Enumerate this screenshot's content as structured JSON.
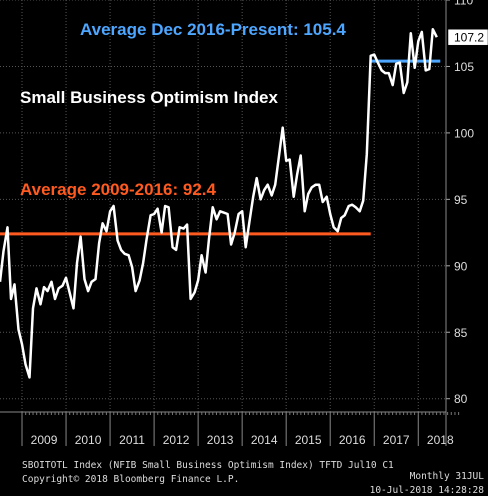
{
  "chart_data": {
    "type": "line",
    "title": "Small Business Optimism Index",
    "x_axis_labels": [
      "2009",
      "2010",
      "2011",
      "2012",
      "2013",
      "2014",
      "2015",
      "2016",
      "2017",
      "2018"
    ],
    "y_axis_labels": [
      "80",
      "85",
      "90",
      "95",
      "100",
      "105",
      "110"
    ],
    "ylim": [
      79,
      110
    ],
    "xlim": [
      2008.5,
      2018.63
    ],
    "grid": true,
    "series": [
      {
        "color": "#ffffff",
        "points": [
          [
            2008.5,
            88.8
          ],
          [
            2008.58,
            91.1
          ],
          [
            2008.67,
            92.9
          ],
          [
            2008.75,
            87.5
          ],
          [
            2008.83,
            88.6
          ],
          [
            2008.92,
            85.2
          ],
          [
            2009.0,
            84.1
          ],
          [
            2009.08,
            82.6
          ],
          [
            2009.17,
            81.6
          ],
          [
            2009.25,
            86.8
          ],
          [
            2009.33,
            88.3
          ],
          [
            2009.42,
            87.1
          ],
          [
            2009.5,
            88.4
          ],
          [
            2009.58,
            88.1
          ],
          [
            2009.67,
            88.8
          ],
          [
            2009.75,
            87.5
          ],
          [
            2009.83,
            88.3
          ],
          [
            2009.92,
            88.5
          ],
          [
            2010.0,
            89.1
          ],
          [
            2010.08,
            88.0
          ],
          [
            2010.17,
            86.8
          ],
          [
            2010.25,
            90.2
          ],
          [
            2010.33,
            92.2
          ],
          [
            2010.42,
            89.0
          ],
          [
            2010.5,
            88.1
          ],
          [
            2010.58,
            88.8
          ],
          [
            2010.67,
            89.0
          ],
          [
            2010.75,
            91.7
          ],
          [
            2010.83,
            93.2
          ],
          [
            2010.92,
            92.6
          ],
          [
            2011.0,
            94.1
          ],
          [
            2011.08,
            94.5
          ],
          [
            2011.17,
            91.9
          ],
          [
            2011.25,
            91.2
          ],
          [
            2011.33,
            90.9
          ],
          [
            2011.42,
            90.8
          ],
          [
            2011.5,
            89.9
          ],
          [
            2011.58,
            88.1
          ],
          [
            2011.67,
            88.9
          ],
          [
            2011.75,
            90.2
          ],
          [
            2011.83,
            92.0
          ],
          [
            2011.92,
            93.8
          ],
          [
            2012.0,
            93.9
          ],
          [
            2012.08,
            94.3
          ],
          [
            2012.17,
            92.5
          ],
          [
            2012.25,
            94.5
          ],
          [
            2012.33,
            94.4
          ],
          [
            2012.42,
            91.4
          ],
          [
            2012.5,
            91.2
          ],
          [
            2012.58,
            92.9
          ],
          [
            2012.67,
            92.8
          ],
          [
            2012.75,
            93.1
          ],
          [
            2012.83,
            87.5
          ],
          [
            2012.92,
            88.0
          ],
          [
            2013.0,
            88.9
          ],
          [
            2013.08,
            90.8
          ],
          [
            2013.17,
            89.5
          ],
          [
            2013.25,
            92.1
          ],
          [
            2013.33,
            94.4
          ],
          [
            2013.42,
            93.5
          ],
          [
            2013.5,
            94.1
          ],
          [
            2013.58,
            94.0
          ],
          [
            2013.67,
            93.9
          ],
          [
            2013.75,
            91.6
          ],
          [
            2013.83,
            92.5
          ],
          [
            2013.92,
            93.9
          ],
          [
            2014.0,
            94.1
          ],
          [
            2014.08,
            91.4
          ],
          [
            2014.17,
            93.4
          ],
          [
            2014.25,
            95.2
          ],
          [
            2014.33,
            96.6
          ],
          [
            2014.42,
            95.0
          ],
          [
            2014.5,
            95.7
          ],
          [
            2014.58,
            96.1
          ],
          [
            2014.67,
            95.3
          ],
          [
            2014.75,
            96.1
          ],
          [
            2014.83,
            98.1
          ],
          [
            2014.92,
            100.4
          ],
          [
            2015.0,
            97.9
          ],
          [
            2015.08,
            98.0
          ],
          [
            2015.17,
            95.2
          ],
          [
            2015.25,
            96.9
          ],
          [
            2015.33,
            98.3
          ],
          [
            2015.42,
            94.1
          ],
          [
            2015.5,
            95.4
          ],
          [
            2015.58,
            95.9
          ],
          [
            2015.67,
            96.1
          ],
          [
            2015.75,
            96.1
          ],
          [
            2015.83,
            94.8
          ],
          [
            2015.92,
            95.2
          ],
          [
            2016.0,
            93.9
          ],
          [
            2016.08,
            92.9
          ],
          [
            2016.17,
            92.6
          ],
          [
            2016.25,
            93.6
          ],
          [
            2016.33,
            93.8
          ],
          [
            2016.42,
            94.5
          ],
          [
            2016.5,
            94.6
          ],
          [
            2016.58,
            94.4
          ],
          [
            2016.67,
            94.1
          ],
          [
            2016.75,
            94.9
          ],
          [
            2016.83,
            98.4
          ],
          [
            2016.92,
            105.8
          ],
          [
            2017.0,
            105.9
          ],
          [
            2017.08,
            105.3
          ],
          [
            2017.17,
            104.7
          ],
          [
            2017.25,
            104.5
          ],
          [
            2017.33,
            104.5
          ],
          [
            2017.42,
            103.6
          ],
          [
            2017.5,
            105.2
          ],
          [
            2017.58,
            105.3
          ],
          [
            2017.67,
            103.0
          ],
          [
            2017.75,
            103.8
          ],
          [
            2017.83,
            107.5
          ],
          [
            2017.92,
            104.9
          ],
          [
            2018.0,
            106.9
          ],
          [
            2018.08,
            107.6
          ],
          [
            2018.17,
            104.7
          ],
          [
            2018.25,
            104.8
          ],
          [
            2018.33,
            107.8
          ],
          [
            2018.42,
            107.2
          ]
        ]
      }
    ],
    "annotations": [
      {
        "text": "Average Dec 2016-Present: 105.4",
        "color": "#4da6ff",
        "level": 105.4,
        "x_start": 2016.92,
        "x_end": 2018.5
      },
      {
        "text": "Average 2009-2016: 92.4",
        "color": "#ff5a1f",
        "level": 92.4,
        "x_start": 2008.5,
        "x_end": 2016.92
      }
    ],
    "last_value_label": "107.2"
  },
  "footer": {
    "left1": "SBOITOTL Index (NFIB Small Business Optimism Index) TFTD Jul10 C1",
    "right1": "Monthly 31JUL",
    "left2": "Copyright© 2018 Bloomberg Finance L.P.",
    "right2": "10-Jul-2018 14:28:28"
  }
}
